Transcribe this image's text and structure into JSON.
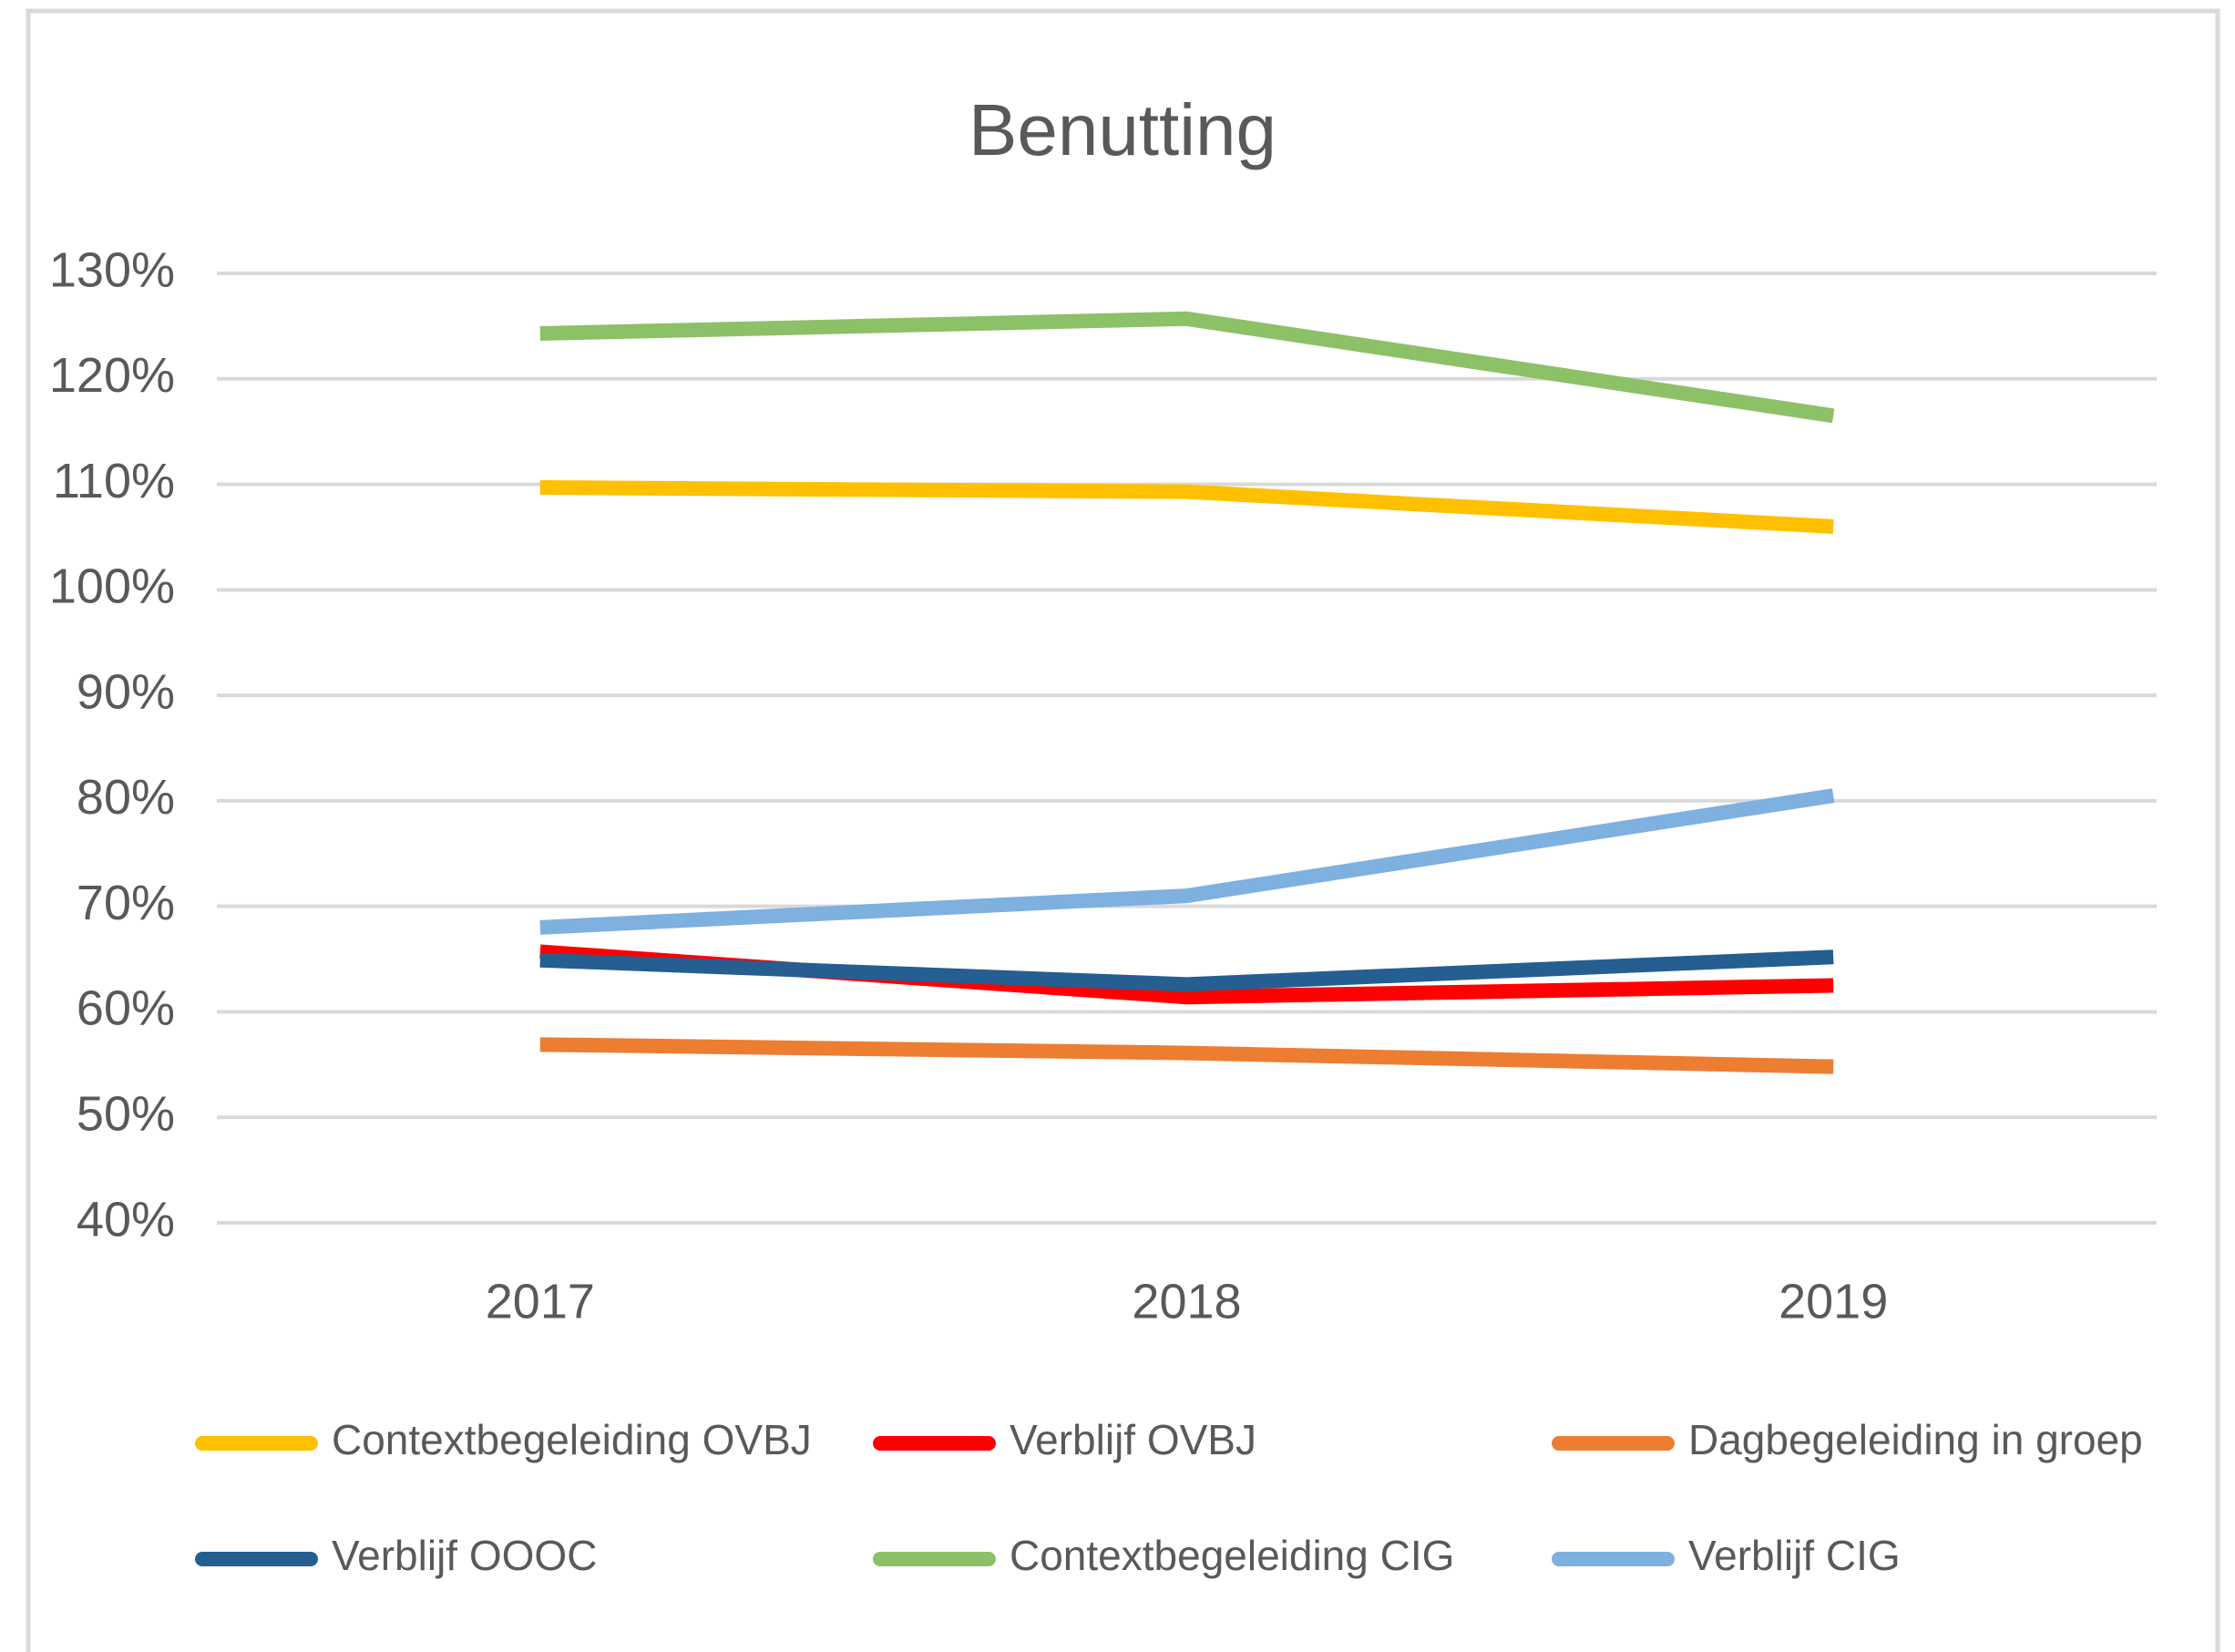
{
  "chart_data": {
    "type": "line",
    "title": "Benutting",
    "categories": [
      "2017",
      "2018",
      "2019"
    ],
    "series": [
      {
        "name": "Contextbegeleiding OVBJ",
        "color": "#ffc000",
        "values": [
          109.7,
          109.3,
          106.0
        ]
      },
      {
        "name": "Verblijf OVBJ",
        "color": "#ff0000",
        "values": [
          65.7,
          61.4,
          62.5
        ]
      },
      {
        "name": "Dagbegeleiding in groep",
        "color": "#ed7d31",
        "values": [
          56.9,
          56.1,
          54.8
        ]
      },
      {
        "name": "Verblijf OOOC",
        "color": "#255e91",
        "values": [
          64.9,
          62.6,
          65.2
        ]
      },
      {
        "name": "Contextbegeleiding CIG",
        "color": "#8cc168",
        "values": [
          124.3,
          125.7,
          116.5
        ]
      },
      {
        "name": "Verblijf CIG",
        "color": "#7eb0e0",
        "values": [
          68.0,
          71.0,
          80.5
        ]
      }
    ],
    "ylim": [
      40,
      130
    ],
    "yticks": [
      {
        "value": 40,
        "label": "40%"
      },
      {
        "value": 50,
        "label": "50%"
      },
      {
        "value": 60,
        "label": "60%"
      },
      {
        "value": 70,
        "label": "70%"
      },
      {
        "value": 80,
        "label": "80%"
      },
      {
        "value": 90,
        "label": "90%"
      },
      {
        "value": 100,
        "label": "100%"
      },
      {
        "value": 110,
        "label": "110%"
      },
      {
        "value": 120,
        "label": "120%"
      },
      {
        "value": 130,
        "label": "130%"
      }
    ],
    "grid": true,
    "legend": "bottom"
  }
}
